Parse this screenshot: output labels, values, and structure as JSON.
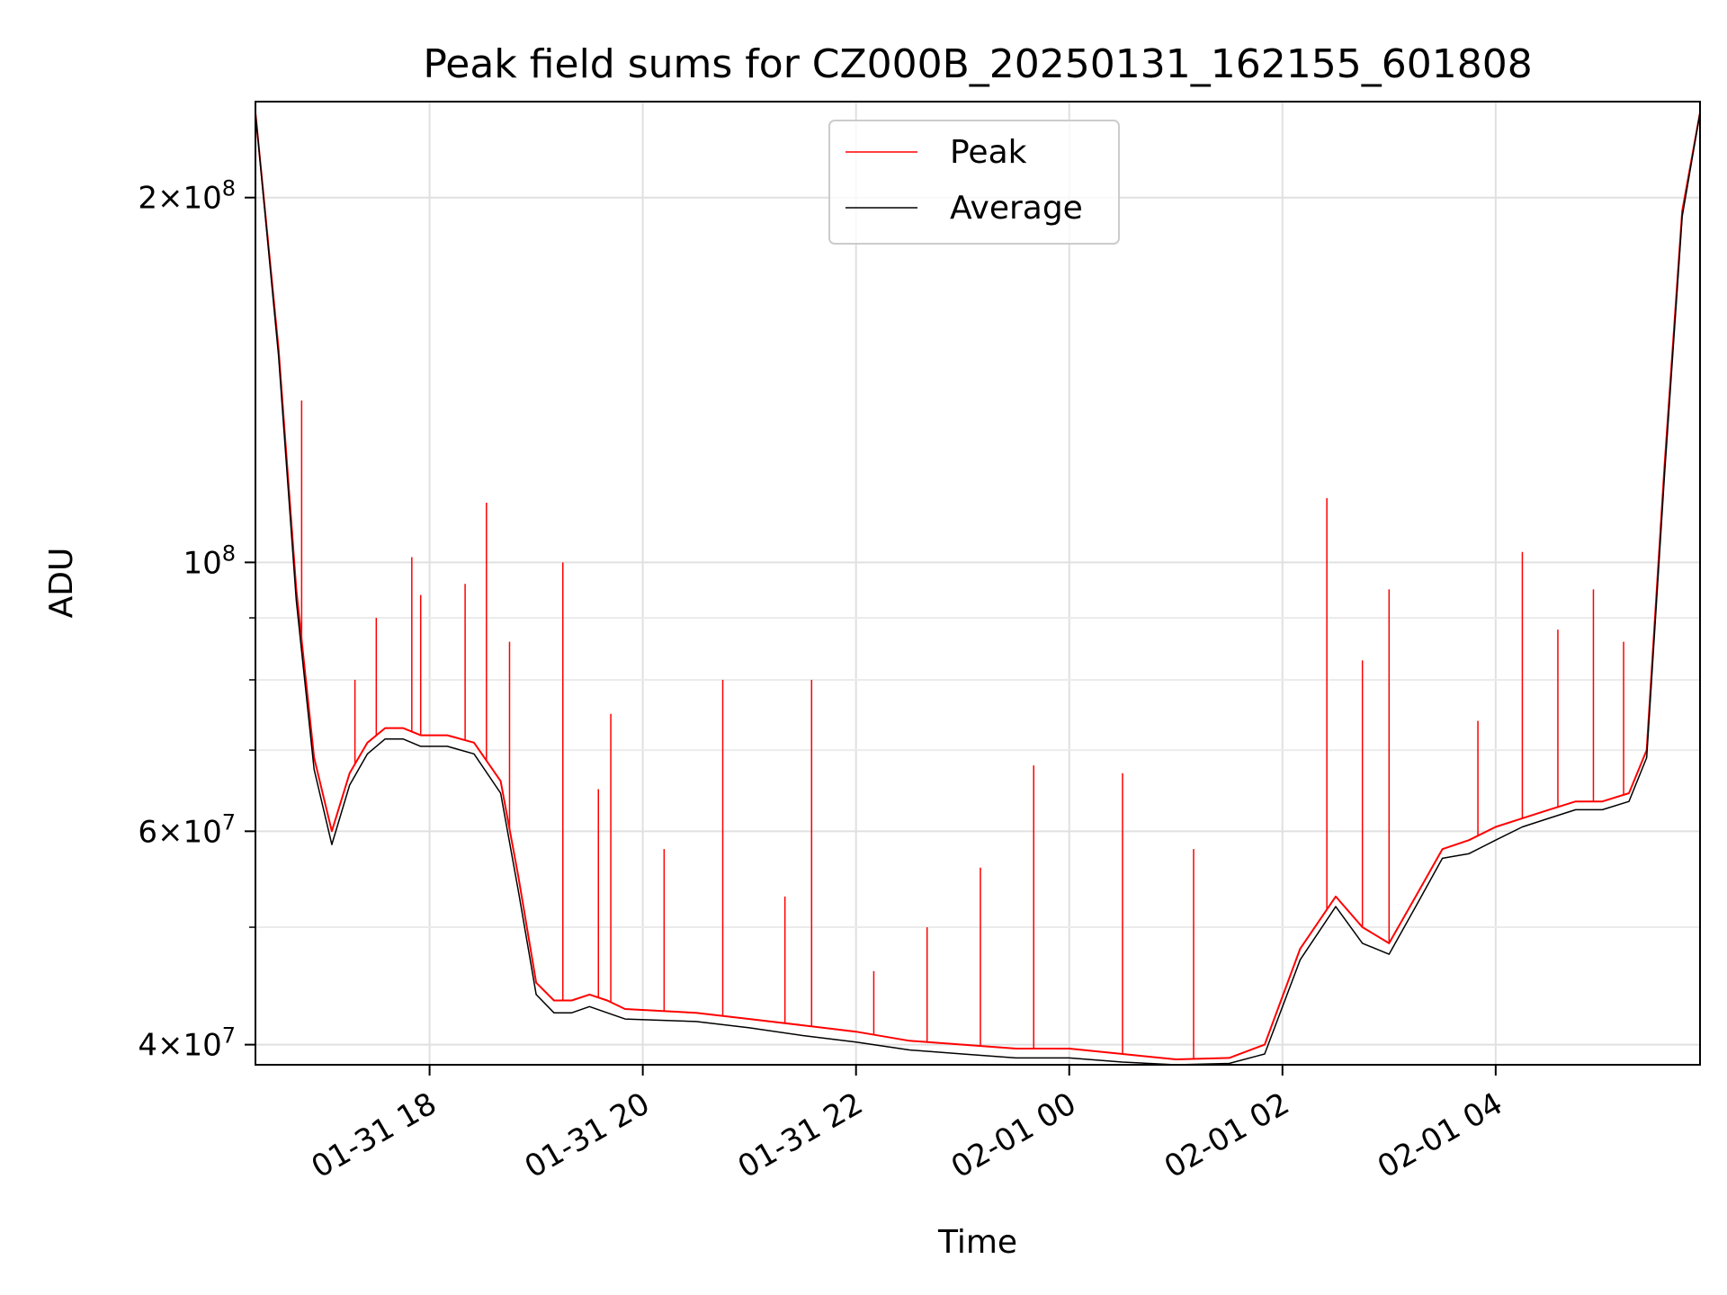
{
  "chart_data": {
    "type": "line",
    "title": "Peak field sums for CZ000B_20250131_162155_601808",
    "xlabel": "Time",
    "ylabel": "ADU",
    "yscale": "log",
    "ylim": [
      38500000,
      240000000
    ],
    "xlim": [
      "01-31 16:22",
      "02-01 05:55"
    ],
    "grid": true,
    "legend_position": "upper center",
    "x_tick_labels": [
      "01-31 18",
      "01-31 20",
      "01-31 22",
      "02-01 00",
      "02-01 02",
      "02-01 04"
    ],
    "y_tick_labels": [
      {
        "value": 40000000,
        "mantissa": "4",
        "exp": "7"
      },
      {
        "value": 60000000,
        "mantissa": "6",
        "exp": "7"
      },
      {
        "value": 100000000,
        "mantissa": "",
        "exp": "8"
      },
      {
        "value": 200000000,
        "mantissa": "2",
        "exp": "8"
      }
    ],
    "series": [
      {
        "name": "Peak",
        "color": "#ff0000",
        "x": [
          "01-31 16:22",
          "01-31 16:35",
          "01-31 16:45",
          "01-31 16:55",
          "01-31 17:05",
          "01-31 17:15",
          "01-31 17:25",
          "01-31 17:35",
          "01-31 17:45",
          "01-31 17:55",
          "01-31 18:10",
          "01-31 18:25",
          "01-31 18:40",
          "01-31 18:50",
          "01-31 19:00",
          "01-31 19:10",
          "01-31 19:20",
          "01-31 19:30",
          "01-31 19:40",
          "01-31 19:50",
          "01-31 20:30",
          "01-31 21:00",
          "01-31 21:30",
          "01-31 22:00",
          "01-31 22:30",
          "01-31 23:00",
          "01-31 23:30",
          "02-01 00:00",
          "02-01 00:30",
          "02-01 01:00",
          "02-01 01:30",
          "02-01 01:50",
          "02-01 02:10",
          "02-01 02:30",
          "02-01 02:45",
          "02-01 03:00",
          "02-01 03:15",
          "02-01 03:30",
          "02-01 03:45",
          "02-01 04:00",
          "02-01 04:15",
          "02-01 04:30",
          "02-01 04:45",
          "02-01 05:00",
          "02-01 05:15",
          "02-01 05:25",
          "02-01 05:35",
          "02-01 05:45",
          "02-01 05:55"
        ],
        "y": [
          235000000,
          150000000,
          95000000,
          69000000,
          60000000,
          67000000,
          71000000,
          73000000,
          73000000,
          72000000,
          72000000,
          71000000,
          66000000,
          55000000,
          45000000,
          43500000,
          43500000,
          44000000,
          43500000,
          42800000,
          42500000,
          42000000,
          41500000,
          41000000,
          40300000,
          40000000,
          39700000,
          39700000,
          39300000,
          38900000,
          39000000,
          40000000,
          48000000,
          53000000,
          50000000,
          48500000,
          53000000,
          58000000,
          59000000,
          60500000,
          61500000,
          62500000,
          63500000,
          63500000,
          64500000,
          70000000,
          120000000,
          195000000,
          235000000
        ],
        "spikes": [
          {
            "x": "01-31 16:48",
            "y": 136000000
          },
          {
            "x": "01-31 17:18",
            "y": 80000000
          },
          {
            "x": "01-31 17:30",
            "y": 90000000
          },
          {
            "x": "01-31 17:50",
            "y": 101000000
          },
          {
            "x": "01-31 17:55",
            "y": 94000000
          },
          {
            "x": "01-31 18:20",
            "y": 96000000
          },
          {
            "x": "01-31 18:32",
            "y": 112000000
          },
          {
            "x": "01-31 18:45",
            "y": 86000000
          },
          {
            "x": "01-31 19:15",
            "y": 100000000
          },
          {
            "x": "01-31 19:35",
            "y": 65000000
          },
          {
            "x": "01-31 19:42",
            "y": 75000000
          },
          {
            "x": "01-31 20:12",
            "y": 58000000
          },
          {
            "x": "01-31 20:45",
            "y": 80000000
          },
          {
            "x": "01-31 21:20",
            "y": 53000000
          },
          {
            "x": "01-31 21:35",
            "y": 80000000
          },
          {
            "x": "01-31 22:10",
            "y": 46000000
          },
          {
            "x": "01-31 22:40",
            "y": 50000000
          },
          {
            "x": "01-31 23:10",
            "y": 56000000
          },
          {
            "x": "01-31 23:40",
            "y": 68000000
          },
          {
            "x": "02-01 00:30",
            "y": 67000000
          },
          {
            "x": "02-01 01:10",
            "y": 58000000
          },
          {
            "x": "02-01 02:25",
            "y": 113000000
          },
          {
            "x": "02-01 02:45",
            "y": 83000000
          },
          {
            "x": "02-01 03:00",
            "y": 95000000
          },
          {
            "x": "02-01 03:50",
            "y": 74000000
          },
          {
            "x": "02-01 04:15",
            "y": 102000000
          },
          {
            "x": "02-01 04:35",
            "y": 88000000
          },
          {
            "x": "02-01 04:55",
            "y": 95000000
          },
          {
            "x": "02-01 05:12",
            "y": 86000000
          }
        ]
      },
      {
        "name": "Average",
        "color": "#000000",
        "x": [
          "01-31 16:22",
          "01-31 16:35",
          "01-31 16:45",
          "01-31 16:55",
          "01-31 17:05",
          "01-31 17:15",
          "01-31 17:25",
          "01-31 17:35",
          "01-31 17:45",
          "01-31 17:55",
          "01-31 18:10",
          "01-31 18:25",
          "01-31 18:40",
          "01-31 18:50",
          "01-31 19:00",
          "01-31 19:10",
          "01-31 19:20",
          "01-31 19:30",
          "01-31 19:40",
          "01-31 19:50",
          "01-31 20:30",
          "01-31 21:00",
          "01-31 21:30",
          "01-31 22:00",
          "01-31 22:30",
          "01-31 23:00",
          "01-31 23:30",
          "02-01 00:00",
          "02-01 00:30",
          "02-01 01:00",
          "02-01 01:30",
          "02-01 01:50",
          "02-01 02:10",
          "02-01 02:30",
          "02-01 02:45",
          "02-01 03:00",
          "02-01 03:15",
          "02-01 03:30",
          "02-01 03:45",
          "02-01 04:00",
          "02-01 04:15",
          "02-01 04:30",
          "02-01 04:45",
          "02-01 05:00",
          "02-01 05:15",
          "02-01 05:25",
          "02-01 05:35",
          "02-01 05:45",
          "02-01 05:55"
        ],
        "y": [
          235000000,
          148000000,
          93000000,
          67500000,
          58500000,
          65500000,
          69500000,
          71500000,
          71500000,
          70500000,
          70500000,
          69500000,
          64500000,
          53500000,
          44000000,
          42500000,
          42500000,
          43000000,
          42500000,
          42000000,
          41800000,
          41300000,
          40700000,
          40200000,
          39600000,
          39300000,
          39000000,
          39000000,
          38700000,
          38500000,
          38600000,
          39300000,
          47000000,
          52000000,
          48500000,
          47500000,
          52000000,
          57000000,
          57500000,
          59000000,
          60500000,
          61500000,
          62500000,
          62500000,
          63500000,
          69000000,
          118000000,
          193000000,
          235000000
        ]
      }
    ]
  }
}
